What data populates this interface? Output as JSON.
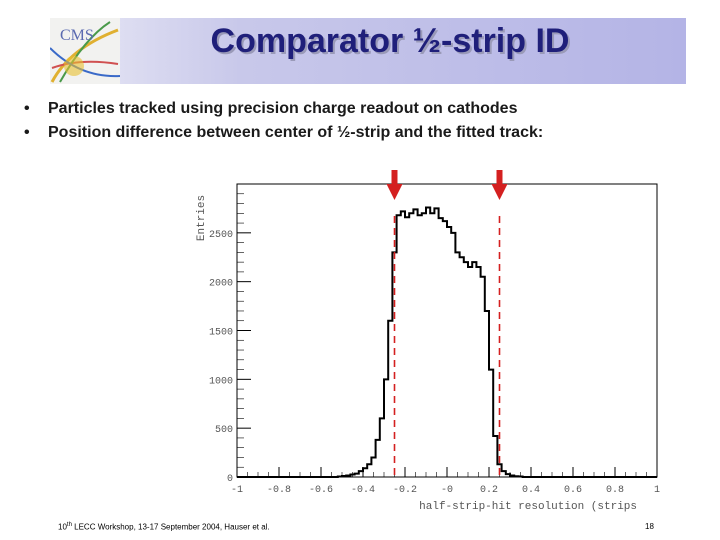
{
  "slide": {
    "title": "Comparator ½-strip ID",
    "logo_text": "CMS",
    "bullets": [
      "Particles tracked using precision charge readout on cathodes",
      "Position difference between center of ½-strip and the fitted track:"
    ],
    "footer": {
      "ordinal_number": "10",
      "ordinal_suffix": "th",
      "event_text": " LECC Workshop, 13-17 September 2004, Hauser et al.",
      "page_number": "18"
    }
  },
  "colors": {
    "title": "#1f1f7a",
    "histogram": "#000000",
    "marker": "#d42020"
  },
  "chart_data": {
    "type": "histogram",
    "title": "",
    "xlabel": "half-strip-hit resolution (strips",
    "ylabel": "Entries",
    "xlim": [
      -1,
      1
    ],
    "ylim": [
      0,
      3000
    ],
    "x_ticks": [
      -1,
      -0.8,
      -0.6,
      -0.4,
      -0.2,
      0,
      0.2,
      0.4,
      0.6,
      0.8,
      1
    ],
    "x_tick_labels": [
      "-1",
      "-0.8",
      "-0.6",
      "-0.4",
      "-0.2",
      "-0",
      "0.2",
      "0.4",
      "0.6",
      "0.8",
      "1"
    ],
    "y_ticks": [
      0,
      500,
      1000,
      1500,
      2000,
      2500
    ],
    "y_tick_labels": [
      "0",
      "500",
      "1000",
      "1500",
      "2000",
      "2500"
    ],
    "bin_edges_start": -0.52,
    "bin_width": 0.02,
    "counts": [
      5,
      10,
      15,
      25,
      35,
      60,
      90,
      130,
      200,
      380,
      600,
      1000,
      1600,
      2300,
      2680,
      2720,
      2660,
      2700,
      2740,
      2680,
      2700,
      2760,
      2700,
      2750,
      2650,
      2620,
      2560,
      2500,
      2300,
      2250,
      2200,
      2150,
      2200,
      2150,
      2050,
      1700,
      1100,
      420,
      130,
      60,
      30,
      15,
      8,
      5
    ],
    "markers": [
      {
        "label": "-0.25",
        "x": -0.25
      },
      {
        "label": "0.25",
        "x": 0.25
      }
    ]
  }
}
